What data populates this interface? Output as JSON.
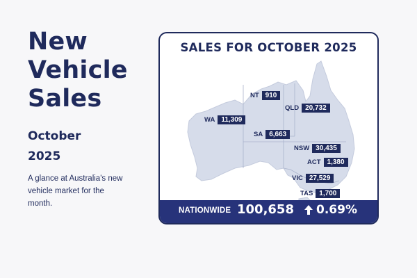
{
  "headline": [
    "New",
    "Vehicle",
    "Sales"
  ],
  "subhead": [
    "October",
    "2025"
  ],
  "blurb": "A glance at Australia's new vehicle market for the month.",
  "card": {
    "title": "SALES FOR OCTOBER 2025",
    "states": [
      {
        "code": "NT",
        "value": "910"
      },
      {
        "code": "QLD",
        "value": "20,732"
      },
      {
        "code": "WA",
        "value": "11,309"
      },
      {
        "code": "SA",
        "value": "6,663"
      },
      {
        "code": "NSW",
        "value": "30,435"
      },
      {
        "code": "ACT",
        "value": "1,380"
      },
      {
        "code": "VIC",
        "value": "27,529"
      },
      {
        "code": "TAS",
        "value": "1,700"
      }
    ],
    "footer": {
      "label": "NATIONWIDE",
      "total": "100,658",
      "change": "0.69%",
      "change_icon": "arrow-up-icon"
    }
  },
  "colors": {
    "navy": "#1f2a5c",
    "footer": "#27337a",
    "map_fill": "#d6dcea",
    "map_border": "#aab3cc",
    "background": "#f7f7f9"
  }
}
